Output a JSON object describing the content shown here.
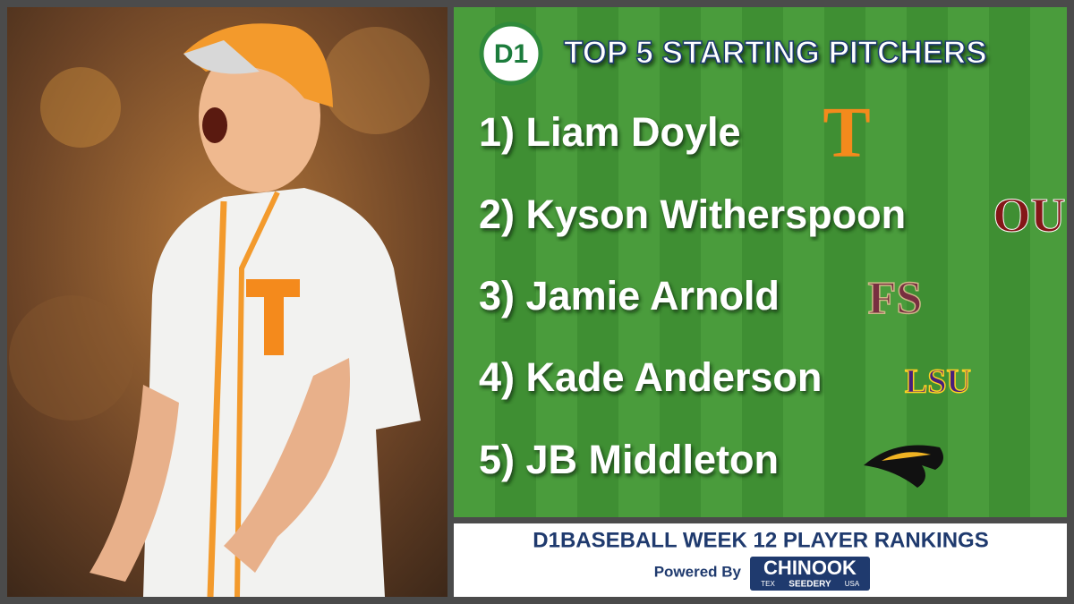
{
  "header": {
    "logo": "D1",
    "title": "TOP 5 STARTING PITCHERS"
  },
  "rankings": [
    {
      "text": "1) Liam Doyle",
      "logo": "T"
    },
    {
      "text": "2) Kyson Witherspoon",
      "logo": "OU"
    },
    {
      "text": "3) Jamie Arnold",
      "logo": "FS"
    },
    {
      "text": "4) Kade Anderson",
      "logo": "LSU"
    },
    {
      "text": "5) JB Middleton"
    }
  ],
  "footer": {
    "title": "D1BASEBALL WEEK 12 PLAYER RANKINGS",
    "powered_by": "Powered By",
    "sponsor": {
      "name": "CHINOOK",
      "left": "TEX",
      "middle": "SEEDERY",
      "right": "USA"
    }
  }
}
